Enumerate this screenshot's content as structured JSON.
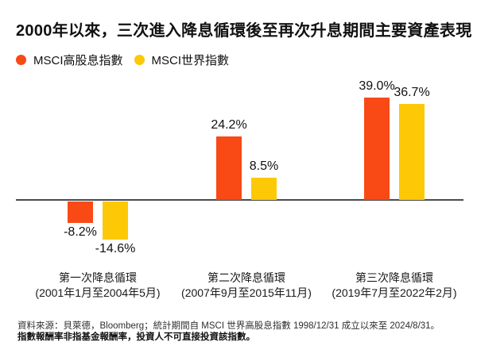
{
  "title": "2000年以來，三次進入降息循環後至再次升息期間主要資產表現",
  "legend": [
    {
      "id": "msci-high-dividend",
      "label": "MSCI高股息指數",
      "color": "#F94915"
    },
    {
      "id": "msci-world",
      "label": "MSCI世界指數",
      "color": "#FDC805"
    }
  ],
  "chart_data": {
    "type": "bar",
    "groups": [
      {
        "name": "第一次降息循環",
        "period": "(2001年1月至2004年5月)"
      },
      {
        "name": "第二次降息循環",
        "period": "(2007年9月至2015年11月)"
      },
      {
        "name": "第三次降息循環",
        "period": "(2019年7月至2022年2月)"
      }
    ],
    "series": [
      {
        "name": "MSCI高股息指數",
        "color": "#F94915",
        "values": [
          -8.2,
          24.2,
          39.0
        ]
      },
      {
        "name": "MSCI世界指數",
        "color": "#FDC805",
        "values": [
          -14.6,
          8.5,
          36.7
        ]
      }
    ],
    "value_labels": [
      [
        "-8.2%",
        "24.2%",
        "39.0%"
      ],
      [
        "-14.6%",
        "8.5%",
        "36.7%"
      ]
    ],
    "value_suffix": "%",
    "ylim": [
      -20,
      45
    ],
    "grid": false,
    "legend_position": "top-left",
    "axis_line_color": "#4A4A4A",
    "title": "2000年以來，三次進入降息循環後至再次升息期間主要資產表現"
  },
  "footer": {
    "line1": "資料來源：貝萊德，Bloomberg；統計期間自 MSCI 世界高股息指數 1998/12/31 成立以來至 2024/8/31。",
    "line2": "指數報酬率非指基金報酬率，投資人不可直接投資該指數。"
  }
}
